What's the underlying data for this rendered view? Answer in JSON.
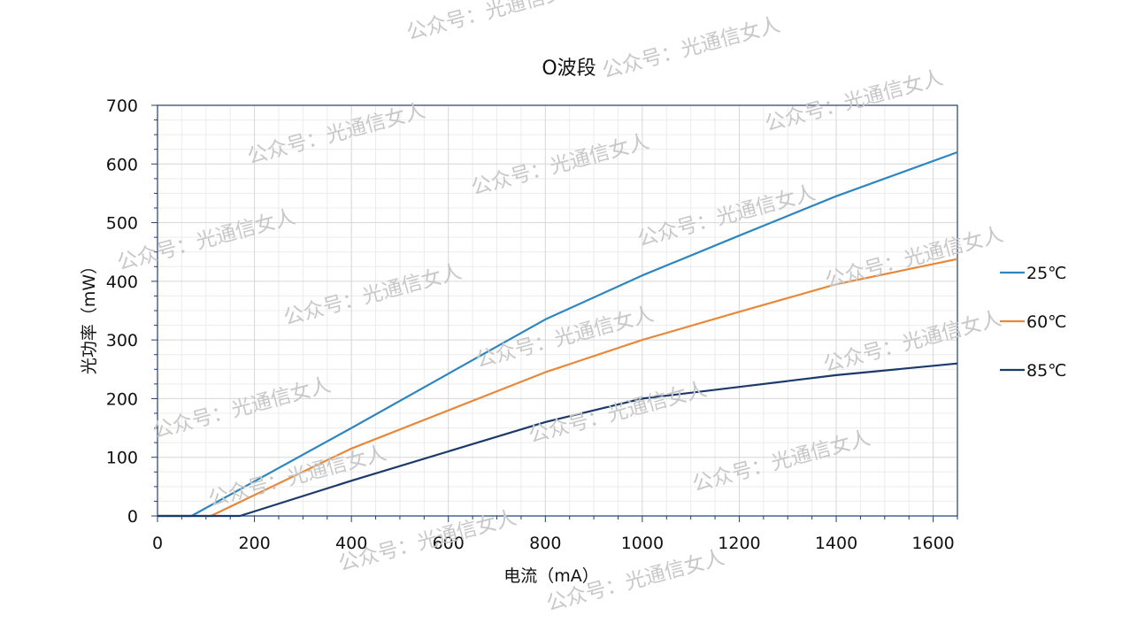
{
  "chart_data": {
    "type": "line",
    "title": "O波段",
    "xlabel": "电流（mA）",
    "ylabel": "光功率（mW）",
    "xlim": [
      0,
      1650
    ],
    "ylim": [
      0,
      700
    ],
    "xticks": [
      0,
      200,
      400,
      600,
      800,
      1000,
      1200,
      1400,
      1600
    ],
    "yticks": [
      0,
      100,
      200,
      300,
      400,
      500,
      600,
      700
    ],
    "grid": true,
    "legend_position": "right",
    "series": [
      {
        "name": "25℃",
        "color": "#2e86c1",
        "points": [
          [
            0,
            0
          ],
          [
            70,
            0
          ],
          [
            400,
            150
          ],
          [
            800,
            335
          ],
          [
            1000,
            410
          ],
          [
            1200,
            478
          ],
          [
            1400,
            545
          ],
          [
            1650,
            620
          ]
        ]
      },
      {
        "name": "60℃",
        "color": "#e8883a",
        "points": [
          [
            0,
            0
          ],
          [
            110,
            0
          ],
          [
            400,
            115
          ],
          [
            800,
            245
          ],
          [
            1000,
            300
          ],
          [
            1200,
            348
          ],
          [
            1400,
            395
          ],
          [
            1650,
            438
          ]
        ]
      },
      {
        "name": "85℃",
        "color": "#1b3a6b",
        "points": [
          [
            0,
            0
          ],
          [
            170,
            0
          ],
          [
            400,
            60
          ],
          [
            800,
            160
          ],
          [
            1000,
            200
          ],
          [
            1200,
            220
          ],
          [
            1400,
            240
          ],
          [
            1650,
            260
          ]
        ]
      }
    ]
  },
  "watermark": "公众号：光通信女人"
}
